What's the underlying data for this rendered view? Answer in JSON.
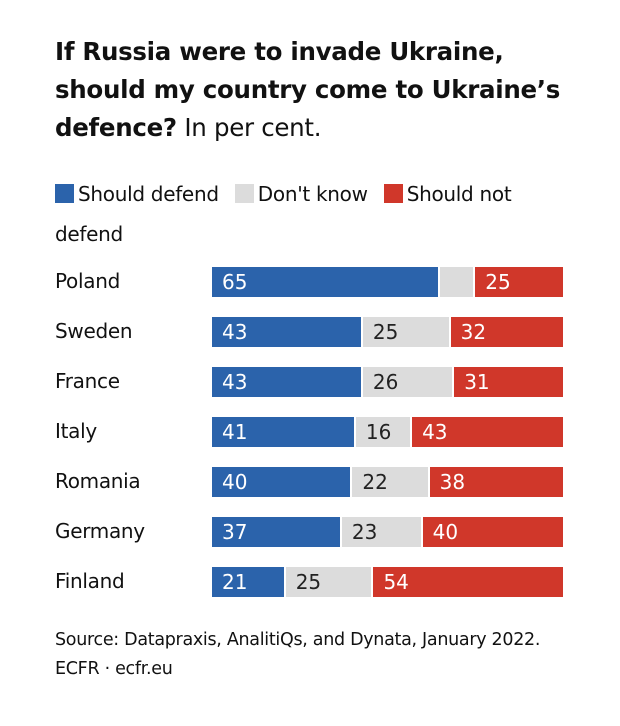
{
  "title": {
    "bold": "If Russia were to invade Ukraine, should my country come to Ukraine’s defence?",
    "regular": " In per cent."
  },
  "legend": [
    {
      "label": "Should defend",
      "color": "#2b63ab"
    },
    {
      "label": "Don't know",
      "color": "#dcdcdc"
    },
    {
      "label": "Should not defend",
      "color": "#d0372a"
    }
  ],
  "footer": {
    "source": "Source: Datapraxis, AnalitiQs, and Dynata, January 2022.",
    "credit": "ECFR · ecfr.eu"
  },
  "chart_data": {
    "type": "bar",
    "orientation": "horizontal",
    "stacked": true,
    "title": "If Russia were to invade Ukraine, should my country come to Ukraine’s defence? In per cent.",
    "xlabel": "",
    "ylabel": "",
    "xlim": [
      0,
      100
    ],
    "grid": false,
    "legend_position": "top",
    "categories": [
      "Poland",
      "Sweden",
      "France",
      "Italy",
      "Romania",
      "Germany",
      "Finland"
    ],
    "series": [
      {
        "name": "Should defend",
        "color": "#2b63ab",
        "label_color": "#ffffff",
        "values": [
          65,
          43,
          43,
          41,
          40,
          37,
          21
        ],
        "show_labels": [
          true,
          true,
          true,
          true,
          true,
          true,
          true
        ]
      },
      {
        "name": "Don't know",
        "color": "#dcdcdc",
        "label_color": "#222222",
        "values": [
          10,
          25,
          26,
          16,
          22,
          23,
          25
        ],
        "show_labels": [
          false,
          true,
          true,
          true,
          true,
          true,
          true
        ]
      },
      {
        "name": "Should not defend",
        "color": "#d0372a",
        "label_color": "#ffffff",
        "values": [
          25,
          32,
          31,
          43,
          38,
          40,
          54
        ],
        "show_labels": [
          true,
          true,
          true,
          true,
          true,
          true,
          true
        ]
      }
    ]
  }
}
